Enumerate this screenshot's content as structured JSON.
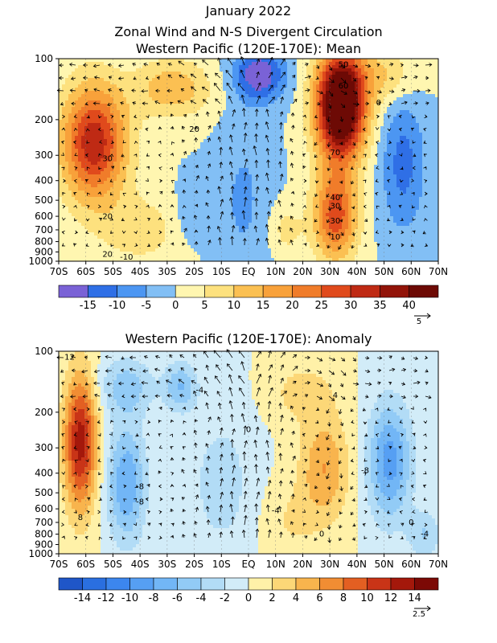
{
  "titles": {
    "line1": "January 2022",
    "line2": "Zonal Wind and N-S Divergent Circulation",
    "line3": "Western Pacific (120E-170E): Mean",
    "line4": "Western Pacific (120E-170E): Anomaly"
  },
  "chart_data": [
    {
      "type": "heatmap",
      "title": "Western Pacific (120E-170E): Mean",
      "x_ticks": [
        "70S",
        "60S",
        "50S",
        "40S",
        "30S",
        "20S",
        "10S",
        "EQ",
        "10N",
        "20N",
        "30N",
        "40N",
        "50N",
        "60N",
        "70N"
      ],
      "y_ticks": [
        "100",
        "200",
        "300",
        "400",
        "500",
        "600",
        "700",
        "800",
        "900",
        "1000"
      ],
      "y_scale": "log",
      "y_unit": "hPa",
      "colorbar_levels": [
        "-15",
        "-10",
        "-5",
        "0",
        "5",
        "10",
        "15",
        "20",
        "25",
        "30",
        "35",
        "40"
      ],
      "colorbar_colors": [
        "#7a62d6",
        "#2f6fe6",
        "#4c96f2",
        "#82bff5",
        "#fff6b0",
        "#fde17e",
        "#fbc052",
        "#f8a13a",
        "#f07c2a",
        "#e04a1c",
        "#bf2a14",
        "#921409",
        "#6d0a05"
      ],
      "contour_labels": [
        "50",
        "60",
        "0",
        "20",
        "70",
        "30",
        "40",
        "30",
        "20",
        "30",
        "10",
        "20",
        "-10"
      ],
      "vector_reference": "5",
      "fields": {
        "blobs": [
          {
            "lat": -57,
            "p": 260,
            "w": 12,
            "h": 1.2,
            "v": 34
          },
          {
            "lat": -28,
            "p": 140,
            "w": 14,
            "h": 0.6,
            "v": 14
          },
          {
            "lat": 4,
            "p": 120,
            "w": 9,
            "h": 0.55,
            "v": -20
          },
          {
            "lat": -2,
            "p": 500,
            "w": 9,
            "h": 1.6,
            "v": -6
          },
          {
            "lat": 34,
            "p": 170,
            "w": 9,
            "h": 1.1,
            "v": 58
          },
          {
            "lat": 32,
            "p": 600,
            "w": 8,
            "h": 0.9,
            "v": 28
          },
          {
            "lat": 57,
            "p": 330,
            "w": 8,
            "h": 1.4,
            "v": -12
          },
          {
            "lat": -40,
            "p": 700,
            "w": 15,
            "h": 0.7,
            "v": 8
          },
          {
            "lat": -22,
            "p": 600,
            "w": 6,
            "h": 0.6,
            "v": -4
          },
          {
            "lat": 14,
            "p": 700,
            "w": 6,
            "h": 0.5,
            "v": 7
          },
          {
            "lat": 50,
            "p": 120,
            "w": 12,
            "h": 0.6,
            "v": 10
          }
        ]
      }
    },
    {
      "type": "heatmap",
      "title": "Western Pacific (120E-170E): Anomaly",
      "x_ticks": [
        "70S",
        "60S",
        "50S",
        "40S",
        "30S",
        "20S",
        "10S",
        "EQ",
        "10N",
        "20N",
        "30N",
        "40N",
        "50N",
        "60N",
        "70N"
      ],
      "y_ticks": [
        "100",
        "200",
        "300",
        "400",
        "500",
        "600",
        "700",
        "800",
        "900",
        "1000"
      ],
      "y_scale": "log",
      "y_unit": "hPa",
      "colorbar_levels": [
        "-14",
        "-12",
        "-10",
        "-8",
        "-6",
        "-4",
        "-2",
        "0",
        "2",
        "4",
        "6",
        "8",
        "10",
        "12",
        "14"
      ],
      "colorbar_colors": [
        "#1f56c8",
        "#2a6fe0",
        "#3c86ee",
        "#569ff3",
        "#72b6f6",
        "#92cbf6",
        "#b2dcf6",
        "#d2ecf8",
        "#fff1a8",
        "#fcd777",
        "#f8b44d",
        "#f18d33",
        "#e35f22",
        "#c93417",
        "#a4180b",
        "#7c0905"
      ],
      "contour_labels": [
        "12",
        "-4",
        "-8",
        "8",
        "4",
        "0",
        "-8",
        "-8",
        "-4",
        "0",
        "0",
        "-4"
      ],
      "vector_reference": "2.5",
      "fields": {
        "blobs": [
          {
            "lat": -62,
            "p": 280,
            "w": 6,
            "h": 1.4,
            "v": 13
          },
          {
            "lat": -45,
            "p": 450,
            "w": 7,
            "h": 1.2,
            "v": -8
          },
          {
            "lat": -45,
            "p": 150,
            "w": 10,
            "h": 0.6,
            "v": -5
          },
          {
            "lat": -10,
            "p": 450,
            "w": 12,
            "h": 1.5,
            "v": -3
          },
          {
            "lat": 28,
            "p": 380,
            "w": 9,
            "h": 1.1,
            "v": 6
          },
          {
            "lat": 20,
            "p": 160,
            "w": 12,
            "h": 0.6,
            "v": 3
          },
          {
            "lat": 52,
            "p": 350,
            "w": 8,
            "h": 1.2,
            "v": -9
          },
          {
            "lat": 15,
            "p": 700,
            "w": 10,
            "h": 0.8,
            "v": 2
          },
          {
            "lat": 65,
            "p": 800,
            "w": 6,
            "h": 0.5,
            "v": -4
          },
          {
            "lat": -25,
            "p": 150,
            "w": 6,
            "h": 0.5,
            "v": -6
          }
        ]
      }
    }
  ]
}
